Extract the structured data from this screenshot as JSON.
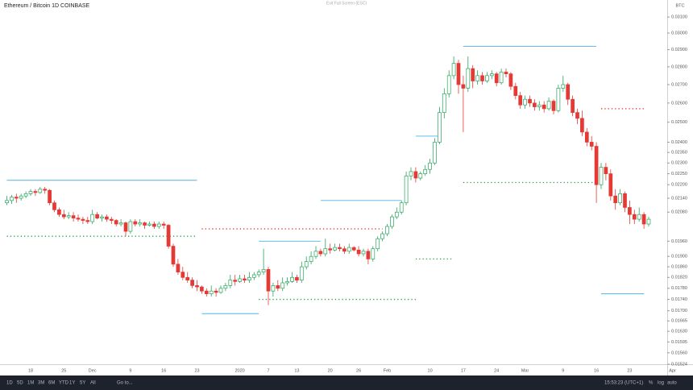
{
  "ui": {
    "title": "Ethereum / Bitcoin  1D  COINBASE",
    "exit": "Exit Full Screen (ESC)",
    "unit": "BTC",
    "timeframes": [
      "1D",
      "5D",
      "1M",
      "3M",
      "6M",
      "YTD",
      "1Y",
      "5Y",
      "All"
    ],
    "goto": "Go to...",
    "clock": "15:53:23 (UTC+1)",
    "percent": "%",
    "log": "log",
    "auto": "auto"
  },
  "chart_data": {
    "type": "candlestick",
    "log_scale": true,
    "up_color": "#26a65b",
    "down_color": "#e53935",
    "ylim": [
      0.01504,
      0.0321
    ],
    "yticks": [
      {
        "value": 0.031,
        "label": "0.03100"
      },
      {
        "value": 0.03,
        "label": "0.03000"
      },
      {
        "value": 0.029,
        "label": "0.02900"
      },
      {
        "value": 0.028,
        "label": "0.02800"
      },
      {
        "value": 0.027,
        "label": "0.02700"
      },
      {
        "value": 0.026,
        "label": "0.02600"
      },
      {
        "value": 0.025,
        "label": "0.02500"
      },
      {
        "value": 0.024,
        "label": "0.02400"
      },
      {
        "value": 0.0235,
        "label": "0.02350"
      },
      {
        "value": 0.023,
        "label": "0.02300"
      },
      {
        "value": 0.0225,
        "label": "0.02250"
      },
      {
        "value": 0.022,
        "label": "0.02200"
      },
      {
        "value": 0.0214,
        "label": "0.02140"
      },
      {
        "value": 0.0208,
        "label": "0.02080"
      },
      {
        "value": 0.0196,
        "label": "0.01960"
      },
      {
        "value": 0.019,
        "label": "0.01900"
      },
      {
        "value": 0.0186,
        "label": "0.01860"
      },
      {
        "value": 0.0182,
        "label": "0.01820"
      },
      {
        "value": 0.0178,
        "label": "0.01780"
      },
      {
        "value": 0.0174,
        "label": "0.01740"
      },
      {
        "value": 0.017,
        "label": "0.01700"
      },
      {
        "value": 0.01665,
        "label": "0.01665"
      },
      {
        "value": 0.0163,
        "label": "0.01630"
      },
      {
        "value": 0.01595,
        "label": "0.01595"
      },
      {
        "value": 0.0156,
        "label": "0.01560"
      },
      {
        "value": 0.01524,
        "label": "0.01524"
      }
    ],
    "categories": [
      null,
      null,
      null,
      null,
      null,
      "18",
      null,
      null,
      null,
      null,
      null,
      null,
      "25",
      null,
      null,
      null,
      null,
      null,
      "Dec",
      null,
      null,
      null,
      null,
      null,
      null,
      null,
      "9",
      null,
      null,
      null,
      null,
      null,
      null,
      "16",
      null,
      null,
      null,
      null,
      null,
      null,
      "23",
      null,
      null,
      null,
      null,
      null,
      null,
      null,
      null,
      "2020",
      null,
      null,
      null,
      null,
      null,
      "7",
      null,
      null,
      null,
      null,
      null,
      "13",
      null,
      null,
      null,
      null,
      null,
      null,
      "20",
      null,
      null,
      null,
      null,
      null,
      "26",
      null,
      null,
      null,
      null,
      null,
      "Feb",
      null,
      null,
      null,
      null,
      null,
      null,
      null,
      null,
      "10",
      null,
      null,
      null,
      null,
      null,
      null,
      "17",
      null,
      null,
      null,
      null,
      null,
      null,
      "24",
      null,
      null,
      null,
      null,
      null,
      "Mar",
      null,
      null,
      null,
      null,
      null,
      null,
      null,
      "9",
      null,
      null,
      null,
      null,
      null,
      null,
      "16",
      null,
      null,
      null,
      null,
      null,
      null,
      "23",
      null,
      null,
      null,
      null,
      null,
      null,
      null,
      null,
      "Apr"
    ],
    "ohlc": [
      [
        0.0212,
        0.0215,
        0.0211,
        0.0213
      ],
      [
        0.0213,
        0.02155,
        0.02115,
        0.02145
      ],
      [
        0.02145,
        0.0216,
        0.0212,
        0.0214
      ],
      [
        0.0214,
        0.0216,
        0.0213,
        0.0215
      ],
      [
        0.0215,
        0.0217,
        0.0214,
        0.0216
      ],
      [
        0.0216,
        0.0218,
        0.0215,
        0.0217
      ],
      [
        0.0217,
        0.0218,
        0.0215,
        0.02165
      ],
      [
        0.02165,
        0.0219,
        0.0216,
        0.0218
      ],
      [
        0.0218,
        0.0219,
        0.0216,
        0.02175
      ],
      [
        0.02175,
        0.0218,
        0.0211,
        0.0212
      ],
      [
        0.0212,
        0.0213,
        0.0208,
        0.0209
      ],
      [
        0.0209,
        0.021,
        0.0206,
        0.0207
      ],
      [
        0.0207,
        0.0209,
        0.0205,
        0.0206
      ],
      [
        0.0206,
        0.0208,
        0.0205,
        0.02065
      ],
      [
        0.02065,
        0.0208,
        0.0204,
        0.02055
      ],
      [
        0.02055,
        0.0207,
        0.0204,
        0.0205
      ],
      [
        0.0205,
        0.0206,
        0.0203,
        0.02045
      ],
      [
        0.02045,
        0.0206,
        0.0203,
        0.0204
      ],
      [
        0.0204,
        0.0209,
        0.0203,
        0.0207
      ],
      [
        0.0207,
        0.0208,
        0.0205,
        0.02055
      ],
      [
        0.02055,
        0.0207,
        0.0204,
        0.0206
      ],
      [
        0.0206,
        0.0207,
        0.0204,
        0.0205
      ],
      [
        0.0205,
        0.0206,
        0.0203,
        0.02045
      ],
      [
        0.02045,
        0.0205,
        0.0202,
        0.0203
      ],
      [
        0.0203,
        0.0205,
        0.0202,
        0.02035
      ],
      [
        0.02035,
        0.0204,
        0.0198,
        0.02
      ],
      [
        0.02,
        0.0205,
        0.0199,
        0.0204
      ],
      [
        0.0204,
        0.0205,
        0.0202,
        0.0203
      ],
      [
        0.0203,
        0.0205,
        0.0202,
        0.02035
      ],
      [
        0.02035,
        0.0204,
        0.0201,
        0.02025
      ],
      [
        0.02025,
        0.0204,
        0.0202,
        0.0203
      ],
      [
        0.0203,
        0.0204,
        0.0201,
        0.0202
      ],
      [
        0.0202,
        0.0204,
        0.0201,
        0.0203
      ],
      [
        0.0203,
        0.0204,
        0.0201,
        0.02025
      ],
      [
        0.02025,
        0.0203,
        0.0193,
        0.0194
      ],
      [
        0.0194,
        0.0195,
        0.0186,
        0.0187
      ],
      [
        0.0187,
        0.0189,
        0.0183,
        0.0184
      ],
      [
        0.0184,
        0.0186,
        0.0181,
        0.0182
      ],
      [
        0.0182,
        0.0184,
        0.018,
        0.0181
      ],
      [
        0.0181,
        0.0182,
        0.0178,
        0.0179
      ],
      [
        0.0179,
        0.0181,
        0.0177,
        0.01785
      ],
      [
        0.01785,
        0.0179,
        0.0176,
        0.0177
      ],
      [
        0.0177,
        0.0178,
        0.0175,
        0.0176
      ],
      [
        0.0176,
        0.0179,
        0.0175,
        0.0177
      ],
      [
        0.0177,
        0.0178,
        0.0175,
        0.01765
      ],
      [
        0.01765,
        0.0179,
        0.0176,
        0.0178
      ],
      [
        0.0178,
        0.018,
        0.0177,
        0.0179
      ],
      [
        0.0179,
        0.0183,
        0.0178,
        0.0181
      ],
      [
        0.0181,
        0.0183,
        0.0179,
        0.01805
      ],
      [
        0.01805,
        0.0183,
        0.018,
        0.01815
      ],
      [
        0.01815,
        0.0183,
        0.018,
        0.0181
      ],
      [
        0.0181,
        0.0184,
        0.018,
        0.0182
      ],
      [
        0.0182,
        0.0184,
        0.0181,
        0.0183
      ],
      [
        0.0183,
        0.0185,
        0.0182,
        0.0184
      ],
      [
        0.0184,
        0.0193,
        0.0183,
        0.0185
      ],
      [
        0.0185,
        0.0186,
        0.0172,
        0.0177
      ],
      [
        0.0177,
        0.018,
        0.0175,
        0.0179
      ],
      [
        0.0179,
        0.0181,
        0.0177,
        0.0178
      ],
      [
        0.0178,
        0.0182,
        0.0177,
        0.018
      ],
      [
        0.018,
        0.0182,
        0.0179,
        0.01805
      ],
      [
        0.01805,
        0.0184,
        0.018,
        0.0182
      ],
      [
        0.0182,
        0.0183,
        0.018,
        0.0181
      ],
      [
        0.0181,
        0.0188,
        0.018,
        0.0186
      ],
      [
        0.0186,
        0.019,
        0.0185,
        0.0188
      ],
      [
        0.0188,
        0.0192,
        0.0187,
        0.019
      ],
      [
        0.019,
        0.0194,
        0.0189,
        0.0192
      ],
      [
        0.0192,
        0.0193,
        0.019,
        0.0191
      ],
      [
        0.0191,
        0.0197,
        0.019,
        0.0193
      ],
      [
        0.0193,
        0.0195,
        0.0191,
        0.01925
      ],
      [
        0.01925,
        0.0195,
        0.0192,
        0.01935
      ],
      [
        0.01935,
        0.0195,
        0.0192,
        0.0193
      ],
      [
        0.0193,
        0.0194,
        0.0191,
        0.0192
      ],
      [
        0.0192,
        0.0195,
        0.0191,
        0.01935
      ],
      [
        0.01935,
        0.0194,
        0.0192,
        0.01925
      ],
      [
        0.01925,
        0.0194,
        0.019,
        0.0191
      ],
      [
        0.0191,
        0.0193,
        0.019,
        0.0192
      ],
      [
        0.0192,
        0.0193,
        0.0187,
        0.0189
      ],
      [
        0.0189,
        0.0194,
        0.0188,
        0.0193
      ],
      [
        0.0193,
        0.0198,
        0.0192,
        0.0197
      ],
      [
        0.0197,
        0.02,
        0.0196,
        0.0199
      ],
      [
        0.0199,
        0.0203,
        0.0198,
        0.0202
      ],
      [
        0.0202,
        0.0207,
        0.0201,
        0.0206
      ],
      [
        0.0206,
        0.021,
        0.0205,
        0.0208
      ],
      [
        0.0208,
        0.0213,
        0.0207,
        0.0212
      ],
      [
        0.0212,
        0.0226,
        0.0211,
        0.0224
      ],
      [
        0.0224,
        0.0228,
        0.0222,
        0.0226
      ],
      [
        0.0226,
        0.0228,
        0.0221,
        0.0223
      ],
      [
        0.0223,
        0.0226,
        0.0222,
        0.0225
      ],
      [
        0.0225,
        0.0229,
        0.0224,
        0.0227
      ],
      [
        0.0227,
        0.0232,
        0.0225,
        0.023
      ],
      [
        0.023,
        0.0242,
        0.0229,
        0.024
      ],
      [
        0.024,
        0.0258,
        0.0239,
        0.0255
      ],
      [
        0.0255,
        0.0268,
        0.0252,
        0.0265
      ],
      [
        0.0265,
        0.0278,
        0.0263,
        0.0275
      ],
      [
        0.0275,
        0.0286,
        0.0273,
        0.0282
      ],
      [
        0.0282,
        0.0284,
        0.0265,
        0.027
      ],
      [
        0.027,
        0.0275,
        0.0245,
        0.0268
      ],
      [
        0.0268,
        0.0286,
        0.0266,
        0.0279
      ],
      [
        0.0279,
        0.0281,
        0.0268,
        0.0272
      ],
      [
        0.0272,
        0.0278,
        0.027,
        0.0275
      ],
      [
        0.0275,
        0.0277,
        0.027,
        0.0272
      ],
      [
        0.0272,
        0.0277,
        0.0271,
        0.0275
      ],
      [
        0.0275,
        0.0278,
        0.0273,
        0.0276
      ],
      [
        0.0276,
        0.0277,
        0.0269,
        0.0271
      ],
      [
        0.0271,
        0.0279,
        0.027,
        0.0277
      ],
      [
        0.0277,
        0.0279,
        0.0274,
        0.0276
      ],
      [
        0.0276,
        0.0277,
        0.0267,
        0.0269
      ],
      [
        0.0269,
        0.0271,
        0.0262,
        0.0264
      ],
      [
        0.0264,
        0.0266,
        0.0257,
        0.0259
      ],
      [
        0.0259,
        0.0264,
        0.0257,
        0.0262
      ],
      [
        0.0262,
        0.0264,
        0.0258,
        0.026
      ],
      [
        0.026,
        0.0262,
        0.0256,
        0.0258
      ],
      [
        0.0258,
        0.0261,
        0.0256,
        0.0259
      ],
      [
        0.0259,
        0.0261,
        0.0255,
        0.0257
      ],
      [
        0.0257,
        0.0263,
        0.0256,
        0.0261
      ],
      [
        0.0261,
        0.0262,
        0.0254,
        0.0256
      ],
      [
        0.0256,
        0.027,
        0.0255,
        0.0268
      ],
      [
        0.0268,
        0.0275,
        0.0266,
        0.027
      ],
      [
        0.027,
        0.0271,
        0.0259,
        0.0262
      ],
      [
        0.0262,
        0.0264,
        0.0253,
        0.0255
      ],
      [
        0.0255,
        0.0257,
        0.0249,
        0.0252
      ],
      [
        0.0252,
        0.0256,
        0.0243,
        0.0245
      ],
      [
        0.0245,
        0.0247,
        0.0238,
        0.024
      ],
      [
        0.024,
        0.0243,
        0.0236,
        0.0238
      ],
      [
        0.0238,
        0.024,
        0.0212,
        0.022
      ],
      [
        0.022,
        0.023,
        0.0218,
        0.0228
      ],
      [
        0.0228,
        0.023,
        0.0222,
        0.0225
      ],
      [
        0.0225,
        0.0227,
        0.0213,
        0.0215
      ],
      [
        0.0215,
        0.0218,
        0.0209,
        0.0212
      ],
      [
        0.0212,
        0.0218,
        0.0211,
        0.0216
      ],
      [
        0.0216,
        0.0217,
        0.0208,
        0.021
      ],
      [
        0.021,
        0.0213,
        0.0203,
        0.0207
      ],
      [
        0.0207,
        0.0209,
        0.0203,
        0.0205
      ],
      [
        0.0205,
        0.021,
        0.0204,
        0.0207
      ],
      [
        0.0207,
        0.0208,
        0.0201,
        0.0203
      ],
      [
        0.0203,
        0.0206,
        0.0202,
        0.0205
      ],
      null,
      null,
      null,
      null,
      null
    ],
    "levels": [
      {
        "value": 0.0222,
        "start": 0,
        "end": 40,
        "color": "#4fb3e8",
        "dotted": false
      },
      {
        "value": 0.0198,
        "start": 0,
        "end": 40,
        "color": "#2e9e4f",
        "dotted": true
      },
      {
        "value": 0.0201,
        "start": 41,
        "end": 79,
        "color": "#e53935",
        "dotted": true
      },
      {
        "value": 0.0169,
        "start": 41,
        "end": 53,
        "color": "#4fb3e8",
        "dotted": false
      },
      {
        "value": 0.0196,
        "start": 53,
        "end": 66,
        "color": "#4fb3e8",
        "dotted": false
      },
      {
        "value": 0.0174,
        "start": 53,
        "end": 86,
        "color": "#2e9e4f",
        "dotted": true
      },
      {
        "value": 0.0213,
        "start": 66,
        "end": 83,
        "color": "#4fb3e8",
        "dotted": false
      },
      {
        "value": 0.0189,
        "start": 86,
        "end": 94,
        "color": "#2e9e4f",
        "dotted": true
      },
      {
        "value": 0.0243,
        "start": 86,
        "end": 91,
        "color": "#4fb3e8",
        "dotted": false
      },
      {
        "value": 0.0292,
        "start": 96,
        "end": 124,
        "color": "#4fb3e8",
        "dotted": false
      },
      {
        "value": 0.0221,
        "start": 96,
        "end": 124,
        "color": "#2e9e4f",
        "dotted": true
      },
      {
        "value": 0.0257,
        "start": 125,
        "end": 134,
        "color": "#e53935",
        "dotted": true
      },
      {
        "value": 0.0176,
        "start": 125,
        "end": 134,
        "color": "#4fb3e8",
        "dotted": false
      }
    ]
  }
}
